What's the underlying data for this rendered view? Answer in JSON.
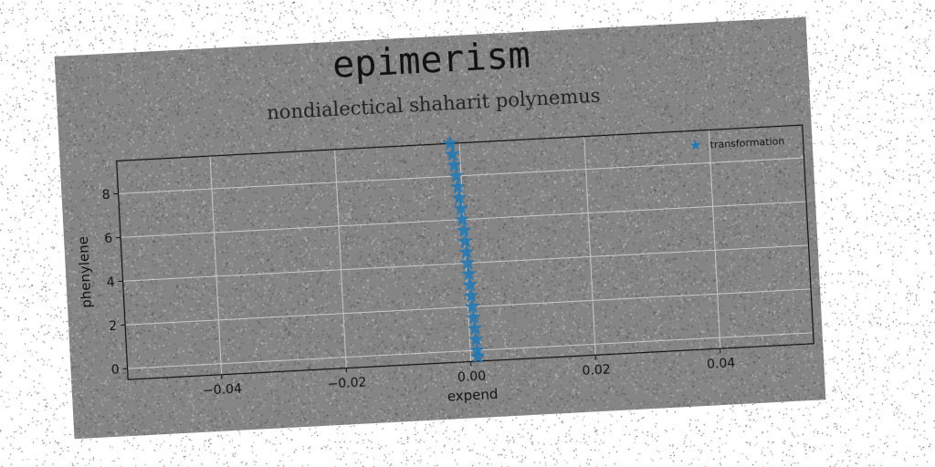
{
  "chart_data": {
    "type": "scatter",
    "title": "epimerism",
    "subtitle": "nondialectical shaharit polynemus",
    "xlabel": "expend",
    "ylabel": "phenylene",
    "xlim": [
      -0.055,
      0.055
    ],
    "ylim": [
      -0.5,
      9.5
    ],
    "xticks": [
      -0.04,
      -0.02,
      0.0,
      0.02,
      0.04
    ],
    "xtick_labels": [
      "−0.04",
      "−0.02",
      "0.00",
      "0.02",
      "0.04"
    ],
    "yticks": [
      0,
      2,
      4,
      6,
      8
    ],
    "ytick_labels": [
      "0",
      "2",
      "4",
      "6",
      "8"
    ],
    "grid": true,
    "legend_position": "top-right",
    "series": [
      {
        "name": "transformation",
        "color": "#1f77b4",
        "marker": "star",
        "x": [
          -0.0015,
          -0.0012,
          -0.001,
          -0.0008,
          -0.0006,
          -0.0005,
          -0.0003,
          -0.0002,
          0.0,
          0.0001,
          0.0002,
          0.0003,
          0.0004,
          0.0005,
          0.0006,
          0.0007,
          0.0008,
          0.0009,
          0.001,
          0.0011,
          0.0012
        ],
        "y": [
          9.5,
          9.0,
          8.5,
          8.0,
          7.5,
          7.0,
          6.5,
          6.0,
          5.5,
          5.0,
          4.5,
          4.0,
          3.5,
          3.0,
          2.5,
          2.0,
          1.5,
          1.0,
          0.5,
          0.0,
          -0.3
        ]
      }
    ]
  }
}
